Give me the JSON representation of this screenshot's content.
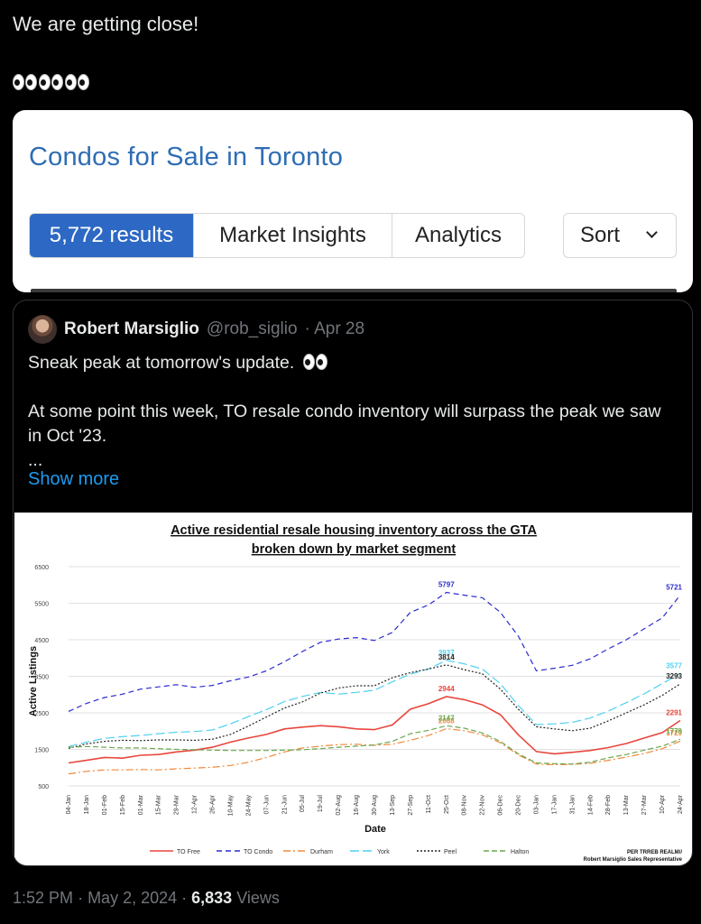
{
  "tweet": {
    "text": "We are getting close!",
    "time": "1:52 PM",
    "date": "May 2, 2024",
    "views_count": "6,833",
    "views_label": "Views"
  },
  "listing_card": {
    "title": "Condos for Sale in Toronto",
    "tabs": [
      {
        "label": "5,772 results"
      },
      {
        "label": "Market Insights"
      },
      {
        "label": "Analytics"
      }
    ],
    "sort_label": "Sort",
    "accent_color": "#2d68c4"
  },
  "quoted_tweet": {
    "name": "Robert Marsiglio",
    "handle": "@rob_siglio",
    "date": "· Apr 28",
    "line1": "Sneak peak at tomorrow's update.",
    "line2": "At some point this week, TO resale condo inventory will surpass the peak we saw in Oct '23.",
    "ellipsis": "...",
    "show_more": "Show more"
  },
  "chart_data": {
    "type": "line",
    "title": "Active residential resale housing inventory across the GTA",
    "subtitle": "broken down by market segment",
    "xlabel": "Date",
    "ylabel": "Active Listings",
    "ylim": [
      500,
      6500
    ],
    "yticks": [
      500,
      1500,
      2500,
      3500,
      4500,
      5500,
      6500
    ],
    "x": [
      "04-Jan",
      "18-Jan",
      "01-Feb",
      "15-Feb",
      "01-Mar",
      "15-Mar",
      "29-Mar",
      "12-Apr",
      "26-Apr",
      "10-May",
      "24-May",
      "07-Jun",
      "21-Jun",
      "05-Jul",
      "19-Jul",
      "02-Aug",
      "16-Aug",
      "30-Aug",
      "13-Sep",
      "27-Sep",
      "11-Oct",
      "25-Oct",
      "08-Nov",
      "22-Nov",
      "06-Dec",
      "20-Dec",
      "03-Jan",
      "17-Jan",
      "31-Jan",
      "14-Feb",
      "28-Feb",
      "13-Mar",
      "27-Mar",
      "10-Apr",
      "24-Apr"
    ],
    "grid": true,
    "legend": "bottom",
    "series": [
      {
        "name": "TO Free",
        "color": "#e8463c",
        "dash": "",
        "values": [
          1130,
          1200,
          1280,
          1260,
          1340,
          1360,
          1430,
          1480,
          1560,
          1700,
          1810,
          1910,
          2060,
          2110,
          2150,
          2120,
          2060,
          2040,
          2170,
          2600,
          2750,
          2944,
          2860,
          2720,
          2450,
          1900,
          1440,
          1380,
          1420,
          1470,
          1550,
          1660,
          1810,
          1960,
          2291
        ],
        "labels": [
          {
            "i": 21,
            "text": "2944"
          },
          {
            "i": 34,
            "text": "2291"
          }
        ]
      },
      {
        "name": "TO Condo",
        "color": "#2b2bd1",
        "dash": "6 4",
        "values": [
          2540,
          2760,
          2920,
          3010,
          3150,
          3210,
          3270,
          3200,
          3250,
          3380,
          3480,
          3650,
          3900,
          4180,
          4430,
          4520,
          4560,
          4480,
          4700,
          5250,
          5450,
          5797,
          5720,
          5650,
          5250,
          4600,
          3650,
          3720,
          3800,
          3980,
          4250,
          4500,
          4800,
          5100,
          5721
        ],
        "labels": [
          {
            "i": 21,
            "text": "5797"
          },
          {
            "i": 34,
            "text": "5721"
          }
        ]
      },
      {
        "name": "Durham",
        "color": "#f08a3c",
        "dash": "8 3 2 3",
        "values": [
          830,
          900,
          940,
          940,
          950,
          940,
          970,
          990,
          1010,
          1060,
          1150,
          1280,
          1430,
          1540,
          1590,
          1630,
          1640,
          1610,
          1640,
          1750,
          1880,
          2068,
          2010,
          1900,
          1680,
          1350,
          1100,
          1080,
          1090,
          1120,
          1200,
          1290,
          1390,
          1520,
          1729
        ],
        "labels": [
          {
            "i": 21,
            "text": "2068"
          },
          {
            "i": 34,
            "text": "1729"
          }
        ]
      },
      {
        "name": "York",
        "color": "#4fd0f0",
        "dash": "10 4",
        "values": [
          1580,
          1700,
          1800,
          1850,
          1880,
          1930,
          1970,
          1990,
          2030,
          2200,
          2400,
          2590,
          2810,
          2950,
          3060,
          3010,
          3060,
          3120,
          3350,
          3560,
          3700,
          3937,
          3840,
          3700,
          3300,
          2700,
          2180,
          2200,
          2240,
          2360,
          2550,
          2780,
          3020,
          3300,
          3577
        ],
        "labels": [
          {
            "i": 21,
            "text": "3937"
          },
          {
            "i": 34,
            "text": "3577"
          }
        ]
      },
      {
        "name": "Peel",
        "color": "#222222",
        "dash": "2 2",
        "values": [
          1530,
          1650,
          1720,
          1750,
          1740,
          1760,
          1760,
          1750,
          1780,
          1910,
          2140,
          2390,
          2630,
          2800,
          3040,
          3180,
          3240,
          3240,
          3460,
          3600,
          3700,
          3814,
          3680,
          3570,
          3150,
          2600,
          2120,
          2060,
          2010,
          2080,
          2280,
          2500,
          2720,
          2980,
          3293
        ],
        "labels": [
          {
            "i": 21,
            "text": "3814"
          },
          {
            "i": 34,
            "text": "3293"
          }
        ]
      },
      {
        "name": "Halton",
        "color": "#6aa84f",
        "dash": "6 3",
        "values": [
          1560,
          1580,
          1560,
          1540,
          1540,
          1520,
          1500,
          1490,
          1480,
          1470,
          1470,
          1470,
          1480,
          1490,
          1520,
          1560,
          1590,
          1620,
          1720,
          1930,
          2020,
          2147,
          2080,
          1950,
          1720,
          1380,
          1130,
          1110,
          1100,
          1150,
          1270,
          1360,
          1480,
          1590,
          1779
        ],
        "labels": [
          {
            "i": 21,
            "text": "2147"
          },
          {
            "i": 34,
            "text": "1779"
          }
        ]
      }
    ],
    "credit_line1": "PER TRREB REALM//",
    "credit_line2": "Robert Marsiglio Sales Representative"
  }
}
